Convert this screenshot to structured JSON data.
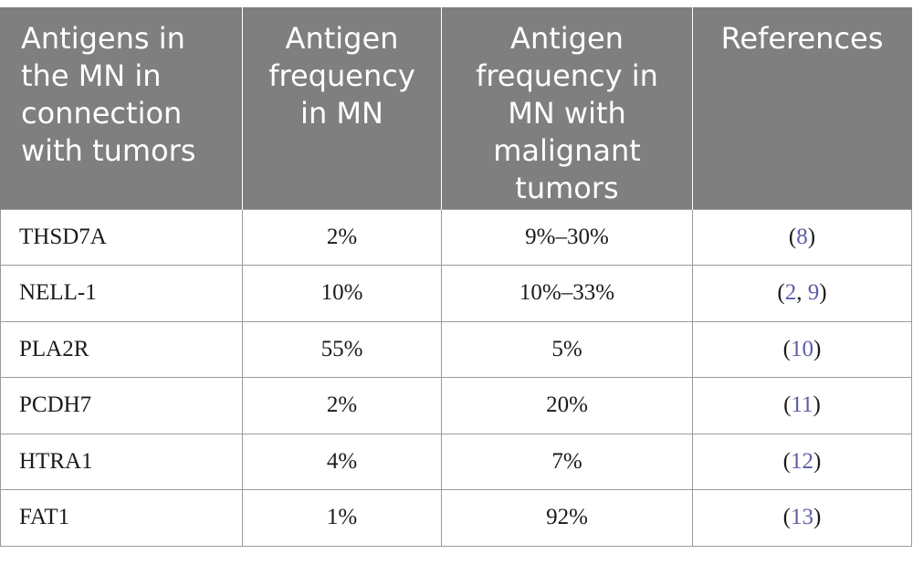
{
  "table": {
    "headers": [
      {
        "lines": [
          "Antigens in",
          "the MN in",
          "connection",
          "with tumors"
        ]
      },
      {
        "lines": [
          "Antigen",
          "frequency",
          "in MN"
        ]
      },
      {
        "lines": [
          "Antigen",
          "frequency in",
          "MN with",
          "malignant",
          "tumors"
        ]
      },
      {
        "lines": [
          "References"
        ]
      }
    ],
    "rows": [
      {
        "antigen": "THSD7A",
        "freq_mn": "2%",
        "freq_tumor": "9%–30%",
        "refs": [
          "8"
        ]
      },
      {
        "antigen": "NELL-1",
        "freq_mn": "10%",
        "freq_tumor": "10%–33%",
        "refs": [
          "2",
          "9"
        ]
      },
      {
        "antigen": "PLA2R",
        "freq_mn": "55%",
        "freq_tumor": "5%",
        "refs": [
          "10"
        ]
      },
      {
        "antigen": "PCDH7",
        "freq_mn": "2%",
        "freq_tumor": "20%",
        "refs": [
          "11"
        ]
      },
      {
        "antigen": "HTRA1",
        "freq_mn": "4%",
        "freq_tumor": "7%",
        "refs": [
          "12"
        ]
      },
      {
        "antigen": "FAT1",
        "freq_mn": "1%",
        "freq_tumor": "92%",
        "refs": [
          "13"
        ]
      }
    ],
    "colors": {
      "header_bg": "#7f7f7f",
      "header_text": "#ffffff",
      "link": "#5b5ea6",
      "border": "#9a9a9a"
    }
  }
}
